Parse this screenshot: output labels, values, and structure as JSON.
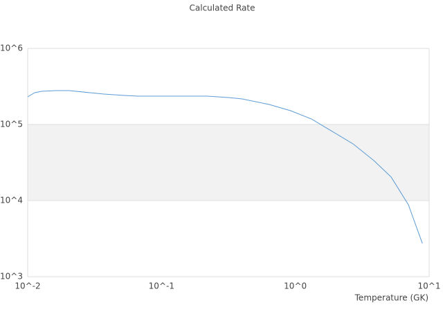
{
  "chart_data": {
    "type": "line",
    "title": "Calculated Rate",
    "x_label": "Temperature (GK)",
    "x": [
      0.01,
      0.0113,
      0.0127,
      0.0161,
      0.0204,
      0.0371,
      0.0529,
      0.0671,
      0.122,
      0.22,
      0.316,
      0.4,
      0.64,
      0.92,
      1.32,
      1.89,
      2.7,
      3.86,
      5.2,
      7.0,
      8.9
    ],
    "series": [
      {
        "name": "Calculated Rate",
        "color": "#5b9bd5",
        "values": [
          231000,
          262000,
          273000,
          279000,
          279000,
          251000,
          241000,
          236000,
          236000,
          236000,
          226000,
          217000,
          183000,
          152000,
          118000,
          81000,
          55600,
          33600,
          20400,
          8800,
          2730
        ]
      }
    ],
    "xlim": [
      0.01,
      10
    ],
    "ylim": [
      1000,
      1000000
    ],
    "xscale": "log",
    "yscale": "log",
    "xticks": [
      {
        "value": 0.01,
        "label": "10^-2"
      },
      {
        "value": 0.1,
        "label": "10^-1"
      },
      {
        "value": 1,
        "label": "10^0"
      },
      {
        "value": 10,
        "label": "10^1"
      }
    ],
    "yticks": [
      {
        "value": 1000,
        "label": "10^3"
      },
      {
        "value": 10000,
        "label": "10^4"
      },
      {
        "value": 100000,
        "label": "10^5"
      },
      {
        "value": 1000000,
        "label": "10^6"
      }
    ],
    "grid": true
  }
}
